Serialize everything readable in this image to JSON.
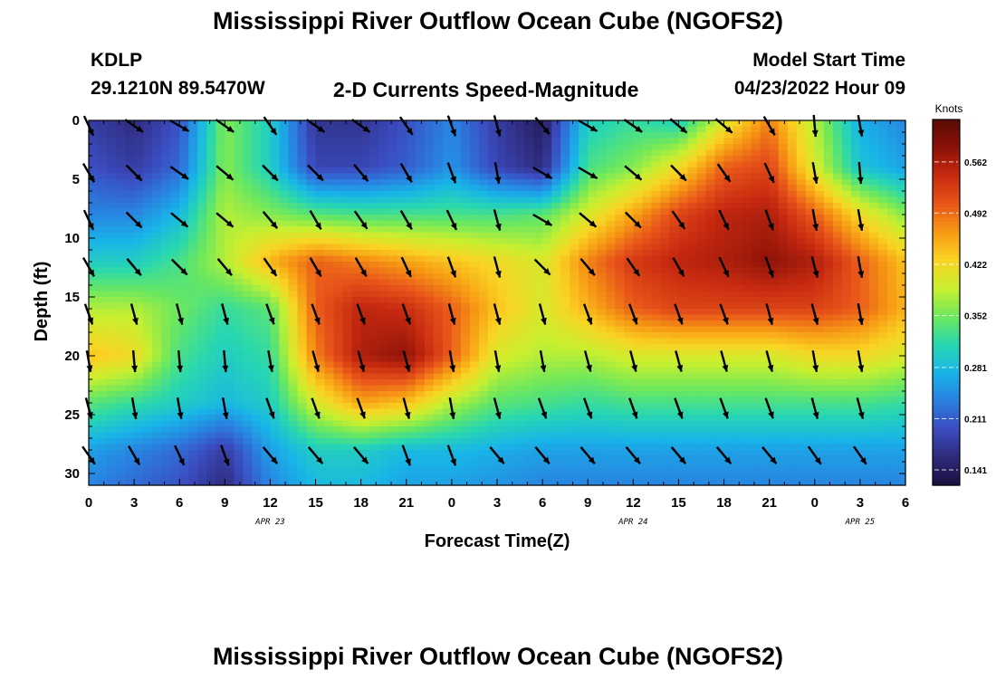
{
  "header": {
    "title": "Mississippi River Outflow Ocean Cube (NGOFS2)",
    "station": "KDLP",
    "coords": "29.1210N  89.5470W",
    "subtitle": "2-D Currents Speed-Magnitude",
    "model_label": "Model Start Time",
    "model_time": "04/23/2022 Hour 09"
  },
  "footer": {
    "title": "Mississippi River Outflow Ocean Cube (NGOFS2)"
  },
  "chart_data": {
    "type": "heatmap",
    "title": "2-D Currents Speed-Magnitude",
    "xlabel": "Forecast Time(Z)",
    "ylabel": "Depth (ft)",
    "x_ticks": [
      "0",
      "3",
      "6",
      "9",
      "12",
      "15",
      "18",
      "21",
      "0",
      "3",
      "6",
      "9",
      "12",
      "15",
      "18",
      "21",
      "0",
      "3",
      "6"
    ],
    "x_range_hours": [
      0,
      54
    ],
    "y_ticks": [
      0,
      5,
      10,
      15,
      20,
      25,
      30
    ],
    "ylim": [
      0,
      31
    ],
    "date_labels": [
      {
        "text": "APR 23",
        "hour": 12
      },
      {
        "text": "APR 24",
        "hour": 36
      },
      {
        "text": "APR 25",
        "hour": 51
      }
    ],
    "colorbar": {
      "unit": "Knots",
      "ticks": [
        "0.562",
        "0.492",
        "0.422",
        "0.352",
        "0.281",
        "0.211",
        "0.141"
      ],
      "vmin": 0.12,
      "vmax": 0.62,
      "colors": [
        "#1a1040",
        "#2e2a7a",
        "#3b4cc0",
        "#2a7fe0",
        "#18b4e8",
        "#28d7b0",
        "#6ee85c",
        "#c9ef2f",
        "#f9d423",
        "#f79a14",
        "#e8561a",
        "#c72a10",
        "#8c1208",
        "#5a0a05"
      ]
    },
    "speed_field": {
      "x_hours": [
        0,
        3,
        6,
        9,
        12,
        15,
        18,
        21,
        24,
        27,
        30,
        33,
        36,
        39,
        42,
        45,
        48,
        51,
        54
      ],
      "depths_ft": [
        0,
        4,
        8,
        12,
        16,
        20,
        24,
        28,
        31
      ],
      "values_knots": [
        [
          0.18,
          0.16,
          0.2,
          0.36,
          0.3,
          0.17,
          0.17,
          0.2,
          0.24,
          0.18,
          0.14,
          0.3,
          0.32,
          0.3,
          0.4,
          0.48,
          0.38,
          0.27,
          0.24
        ],
        [
          0.2,
          0.18,
          0.22,
          0.36,
          0.3,
          0.19,
          0.19,
          0.21,
          0.25,
          0.19,
          0.16,
          0.33,
          0.36,
          0.42,
          0.5,
          0.52,
          0.4,
          0.29,
          0.26
        ],
        [
          0.24,
          0.24,
          0.28,
          0.38,
          0.36,
          0.34,
          0.33,
          0.33,
          0.33,
          0.33,
          0.34,
          0.4,
          0.46,
          0.52,
          0.55,
          0.56,
          0.5,
          0.42,
          0.36
        ],
        [
          0.3,
          0.3,
          0.33,
          0.38,
          0.45,
          0.5,
          0.48,
          0.46,
          0.44,
          0.42,
          0.4,
          0.48,
          0.53,
          0.55,
          0.56,
          0.58,
          0.56,
          0.5,
          0.44
        ],
        [
          0.38,
          0.38,
          0.35,
          0.32,
          0.34,
          0.5,
          0.55,
          0.54,
          0.5,
          0.44,
          0.4,
          0.45,
          0.5,
          0.52,
          0.52,
          0.52,
          0.52,
          0.5,
          0.45
        ],
        [
          0.44,
          0.42,
          0.33,
          0.3,
          0.32,
          0.48,
          0.56,
          0.58,
          0.5,
          0.4,
          0.38,
          0.38,
          0.4,
          0.4,
          0.4,
          0.4,
          0.42,
          0.42,
          0.4
        ],
        [
          0.34,
          0.32,
          0.3,
          0.28,
          0.3,
          0.4,
          0.46,
          0.44,
          0.38,
          0.34,
          0.33,
          0.32,
          0.33,
          0.33,
          0.33,
          0.33,
          0.33,
          0.33,
          0.32
        ],
        [
          0.26,
          0.24,
          0.22,
          0.18,
          0.26,
          0.3,
          0.3,
          0.28,
          0.28,
          0.27,
          0.26,
          0.26,
          0.26,
          0.26,
          0.26,
          0.26,
          0.26,
          0.26,
          0.26
        ],
        [
          0.24,
          0.22,
          0.2,
          0.16,
          0.24,
          0.28,
          0.28,
          0.26,
          0.26,
          0.25,
          0.24,
          0.24,
          0.24,
          0.24,
          0.24,
          0.24,
          0.24,
          0.24,
          0.24
        ]
      ]
    },
    "vectors": {
      "x_hours": [
        0,
        3,
        6,
        9,
        12,
        15,
        18,
        21,
        24,
        27,
        30,
        33,
        36,
        39,
        42,
        45,
        48,
        51
      ],
      "depths_ft": [
        0,
        4,
        8,
        12,
        16,
        20,
        24,
        28
      ],
      "angle_deg_from_down": [
        [
          25,
          55,
          60,
          55,
          35,
          55,
          55,
          35,
          20,
          15,
          40,
          60,
          55,
          50,
          50,
          30,
          5,
          10
        ],
        [
          30,
          45,
          55,
          50,
          45,
          45,
          40,
          30,
          20,
          10,
          60,
          60,
          50,
          45,
          35,
          25,
          10,
          5
        ],
        [
          25,
          45,
          50,
          50,
          40,
          30,
          35,
          30,
          25,
          15,
          60,
          50,
          45,
          35,
          25,
          20,
          10,
          10
        ],
        [
          30,
          40,
          45,
          40,
          35,
          30,
          30,
          25,
          20,
          15,
          45,
          40,
          35,
          30,
          25,
          20,
          15,
          10
        ],
        [
          20,
          15,
          15,
          15,
          20,
          20,
          20,
          20,
          15,
          15,
          15,
          20,
          20,
          20,
          20,
          15,
          15,
          10
        ],
        [
          10,
          5,
          5,
          5,
          10,
          15,
          15,
          15,
          10,
          10,
          10,
          15,
          15,
          15,
          15,
          15,
          10,
          10
        ],
        [
          15,
          10,
          10,
          10,
          20,
          20,
          20,
          15,
          10,
          15,
          20,
          20,
          20,
          20,
          20,
          20,
          15,
          15
        ],
        [
          35,
          30,
          25,
          20,
          40,
          40,
          40,
          20,
          20,
          40,
          40,
          40,
          40,
          40,
          40,
          40,
          35,
          35
        ]
      ]
    }
  }
}
